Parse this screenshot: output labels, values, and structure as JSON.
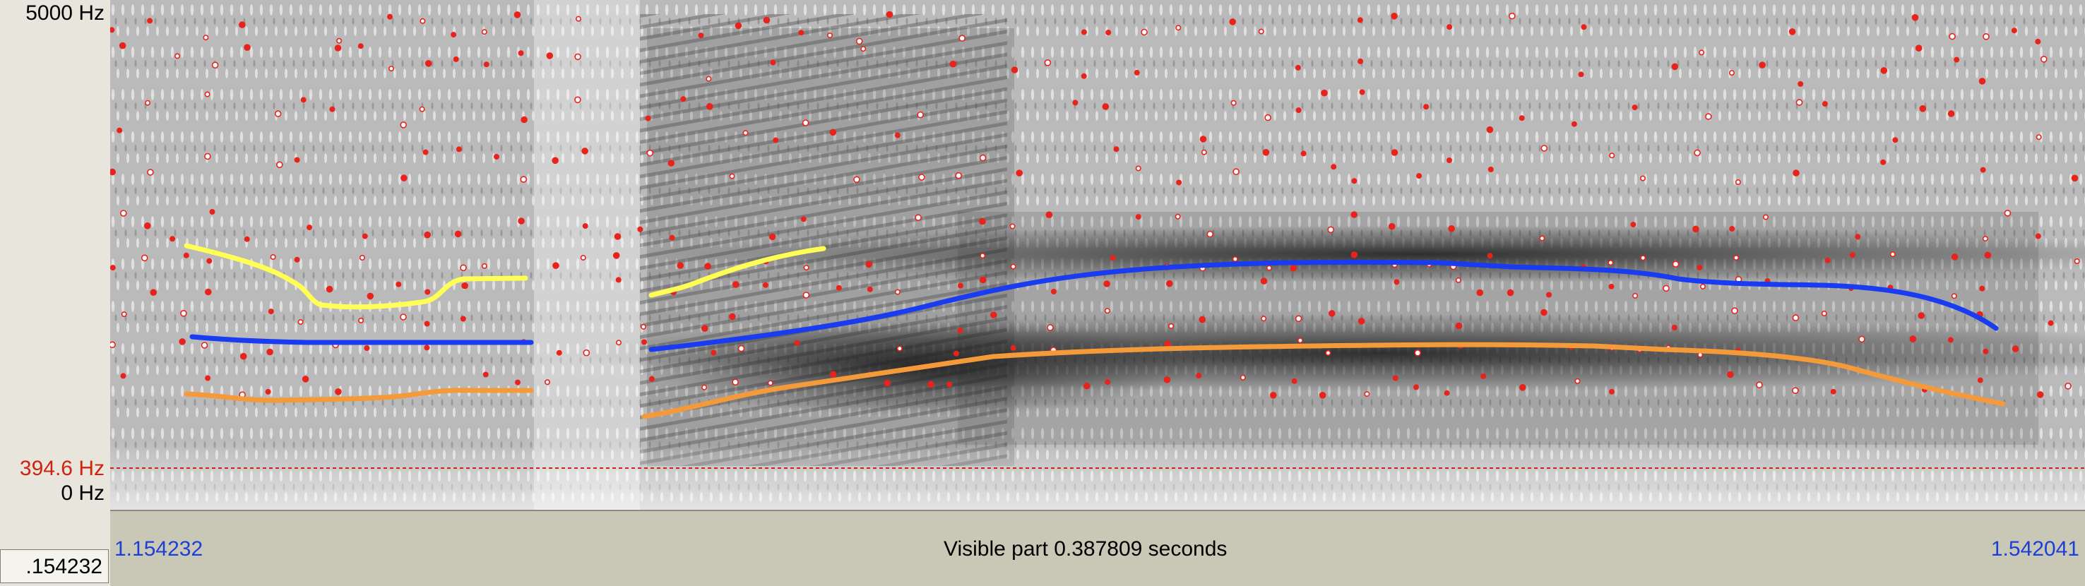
{
  "axis": {
    "freq_max_label": "5000 Hz",
    "freq_cursor_label": "394.6 Hz",
    "freq_min_label": "0 Hz"
  },
  "timebar": {
    "start_time": "1.154232",
    "end_time": "1.542041",
    "visible_part_text": "Visible part 0.387809 seconds",
    "selection_time": ".154232"
  },
  "colors": {
    "formant_dots": "#e8231c",
    "track_yellow": "#ffff55",
    "track_blue": "#1a3cf0",
    "track_orange": "#f59a3a",
    "cursor_label": "#d0220f",
    "time_label": "#1c3fd8"
  },
  "cursor": {
    "frequency_hz": 394.6
  }
}
